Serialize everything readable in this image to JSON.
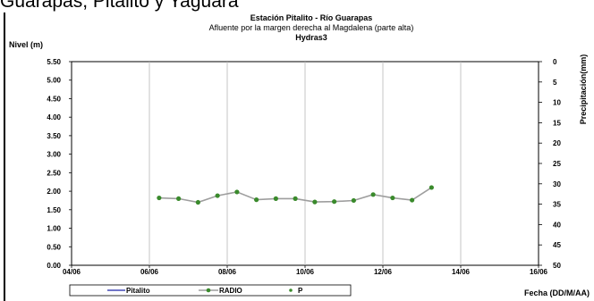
{
  "page": {
    "title_fragment": "Guarapas, Pitalito y Yaguará"
  },
  "chart_data": {
    "type": "line",
    "title": "Estación Pitalito  - Río Guarapas",
    "subtitle": "Afluente por la margen derecha al Magdalena (parte alta)",
    "source": "Hydras3",
    "ylabel": "Nivel (m)",
    "y2label": "Precipitación(mm)",
    "xlabel": "Fecha (DD/M/AA)",
    "x_ticks": [
      "04/06",
      "06/06",
      "08/06",
      "10/06",
      "12/06",
      "14/06",
      "16/06"
    ],
    "x_range_days": [
      4,
      16
    ],
    "ylim": [
      0,
      5.5
    ],
    "y_ticks": [
      "0.00",
      "0.50",
      "1.00",
      "1.50",
      "2.00",
      "2.50",
      "3.00",
      "3.50",
      "4.00",
      "4.50",
      "5.00",
      "5.50"
    ],
    "y2lim": [
      50,
      0
    ],
    "y2_ticks": [
      "0",
      "5",
      "10",
      "15",
      "20",
      "25",
      "30",
      "35",
      "40",
      "45",
      "50"
    ],
    "legend": {
      "placement": "bottom",
      "items": [
        "Pitalito",
        "RADIO",
        "P"
      ]
    },
    "series": [
      {
        "name": "RADIO",
        "x": [
          6.25,
          6.75,
          7.25,
          7.75,
          8.25,
          8.75,
          9.25,
          9.75,
          10.25,
          10.75,
          11.25,
          11.75,
          12.25,
          12.75,
          13.25
        ],
        "values": [
          1.82,
          1.8,
          1.7,
          1.88,
          1.98,
          1.77,
          1.8,
          1.8,
          1.71,
          1.72,
          1.75,
          1.91,
          1.82,
          1.76,
          2.1
        ]
      }
    ],
    "colors": {
      "radio_line": "#9e9e9e",
      "radio_marker": "#3a8a2c",
      "pitalito": "#1c23a8",
      "p_marker": "#3a8a2c"
    }
  }
}
